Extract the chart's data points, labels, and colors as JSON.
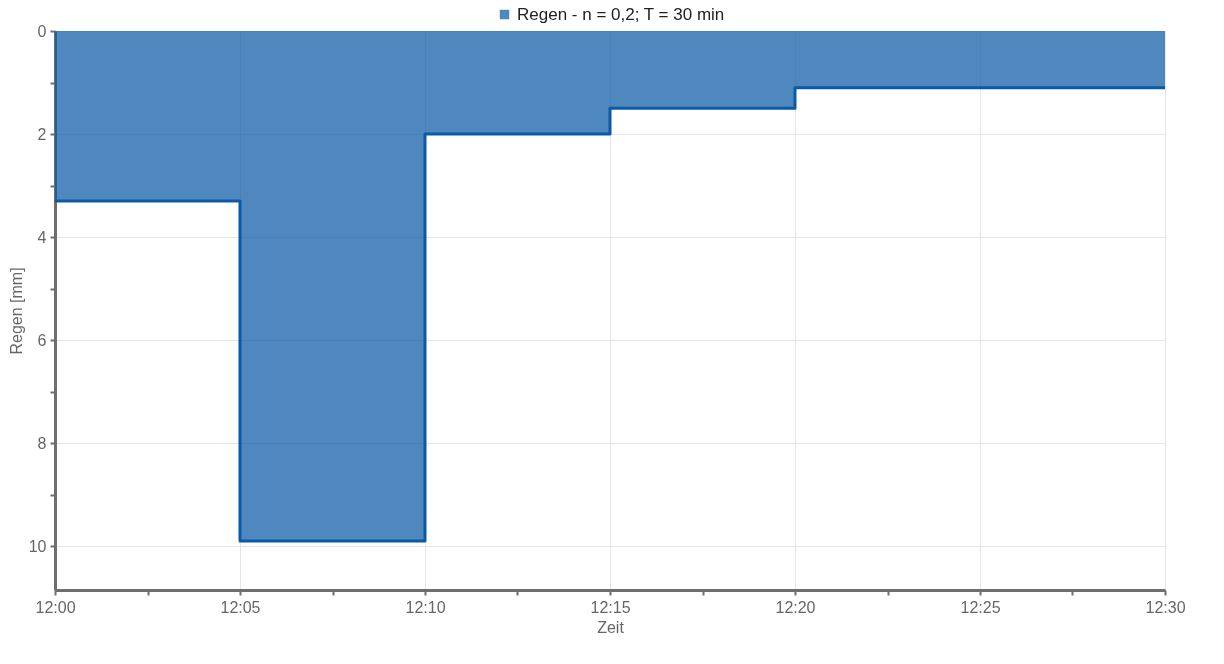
{
  "chart_data": {
    "type": "area",
    "xlabel": "Zeit",
    "ylabel": "Regen [mm]",
    "x": [
      12,
      12.083333,
      12.083333,
      12.166667,
      12.166667,
      12.25,
      12.25,
      12.333333,
      12.333333,
      12.5
    ],
    "series": [
      {
        "name": "Regen - n = 0,2; T = 30 min",
        "color": "#0b5aa6",
        "values": [
          3.3,
          3.3,
          9.9,
          9.9,
          2.0,
          2.0,
          1.5,
          1.5,
          1.1,
          1.1
        ]
      }
    ],
    "xlim": [
      12,
      12.5
    ],
    "xticks": [
      {
        "value": 12,
        "label": "12:00"
      },
      {
        "value": 12.041667,
        "label": null
      },
      {
        "value": 12.083333,
        "label": "12:05"
      },
      {
        "value": 12.125,
        "label": null
      },
      {
        "value": 12.166667,
        "label": "12:10"
      },
      {
        "value": 12.208333,
        "label": null
      },
      {
        "value": 12.25,
        "label": "12:15"
      },
      {
        "value": 12.291667,
        "label": null
      },
      {
        "value": 12.333333,
        "label": "12:20"
      },
      {
        "value": 12.375,
        "label": null
      },
      {
        "value": 12.416667,
        "label": "12:25"
      },
      {
        "value": 12.458333,
        "label": null
      },
      {
        "value": 12.5,
        "label": "12:30"
      }
    ],
    "ylim": [
      10.85,
      0
    ],
    "yticks": [
      0,
      {
        "value": 1,
        "label": null
      },
      2,
      {
        "value": 3,
        "label": null
      },
      4,
      {
        "value": 5,
        "label": null
      },
      6,
      {
        "value": 7,
        "label": null
      },
      8,
      {
        "value": 9,
        "label": null
      },
      10
    ],
    "grid": true,
    "legend": "top"
  }
}
